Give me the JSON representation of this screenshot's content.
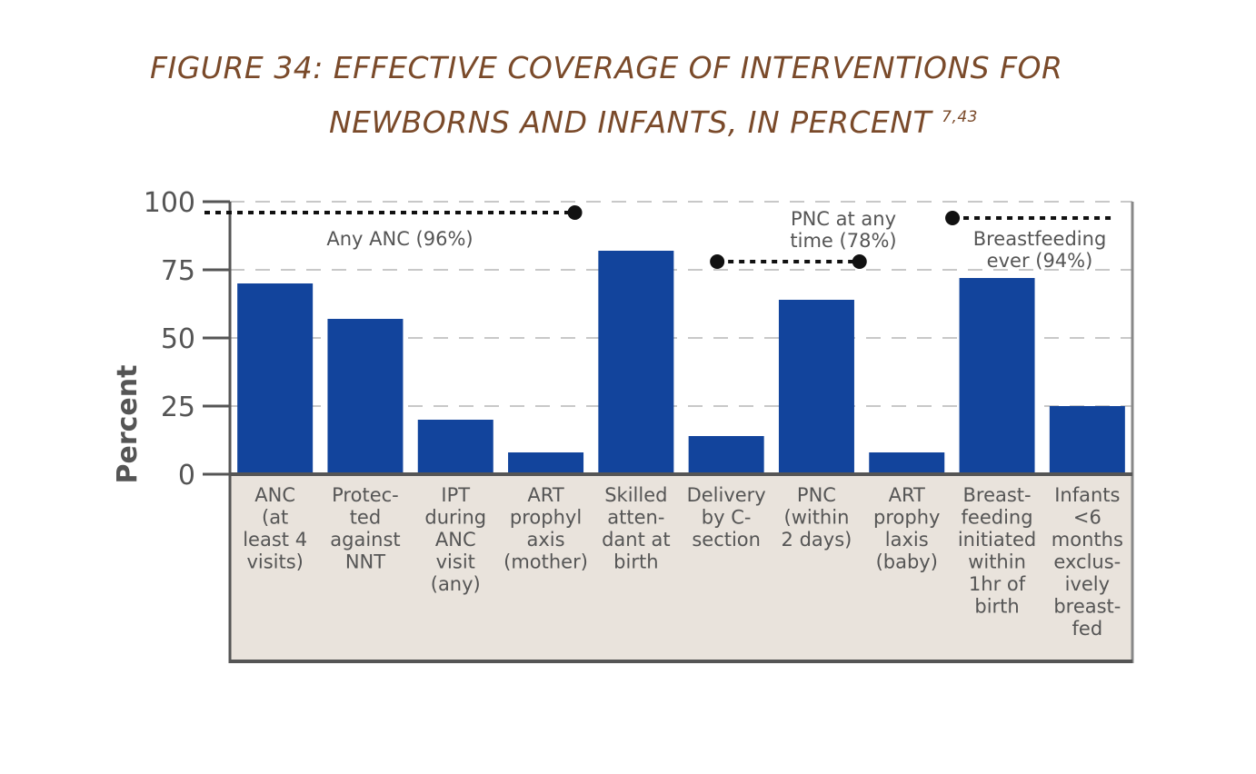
{
  "title": {
    "line1": "FIGURE 34: EFFECTIVE COVERAGE OF INTERVENTIONS FOR",
    "line2": "NEWBORNS AND INFANTS, IN PERCENT",
    "superscript": "7,43"
  },
  "colors": {
    "bar": "#12449c",
    "title": "#7a4a2a",
    "label_bg": "#e9e3dc",
    "axis": "#555555",
    "text": "#555555",
    "grid": "#c8c8c8"
  },
  "chart_data": {
    "type": "bar",
    "ylabel": "Percent",
    "ylim": [
      0,
      100
    ],
    "yticks": [
      0,
      25,
      50,
      75,
      100
    ],
    "grid": true,
    "categories": [
      [
        "ANC",
        "(at",
        "least 4",
        "visits)"
      ],
      [
        "Protec-",
        "ted",
        "against",
        "NNT"
      ],
      [
        "IPT",
        "during",
        "ANC",
        "visit",
        "(any)"
      ],
      [
        "ART",
        "prophyl",
        "axis",
        "(mother)"
      ],
      [
        "Skilled",
        "atten-",
        "dant at",
        "birth"
      ],
      [
        "Delivery",
        "by C-",
        "section"
      ],
      [
        "PNC",
        "(within",
        "2 days)"
      ],
      [
        "ART",
        "prophy",
        "laxis",
        "(baby)"
      ],
      [
        "Breast-",
        "feeding",
        "initiated",
        "within",
        "1hr of",
        "birth"
      ],
      [
        "Infants",
        "<6",
        "months",
        "exclus-",
        "ively",
        "breast-",
        "fed"
      ]
    ],
    "values": [
      70,
      57,
      20,
      8,
      82,
      14,
      64,
      8,
      72,
      25
    ],
    "reference_lines": [
      {
        "label": [
          "Any ANC (96%)"
        ],
        "value": 96,
        "from": 0,
        "to": 3
      },
      {
        "label": [
          "PNC at any",
          "time (78%)"
        ],
        "value": 78,
        "from": 5,
        "to": 7
      },
      {
        "label": [
          "Breastfeeding",
          "ever (94%)"
        ],
        "value": 94,
        "from": 8,
        "to": 9
      }
    ]
  }
}
